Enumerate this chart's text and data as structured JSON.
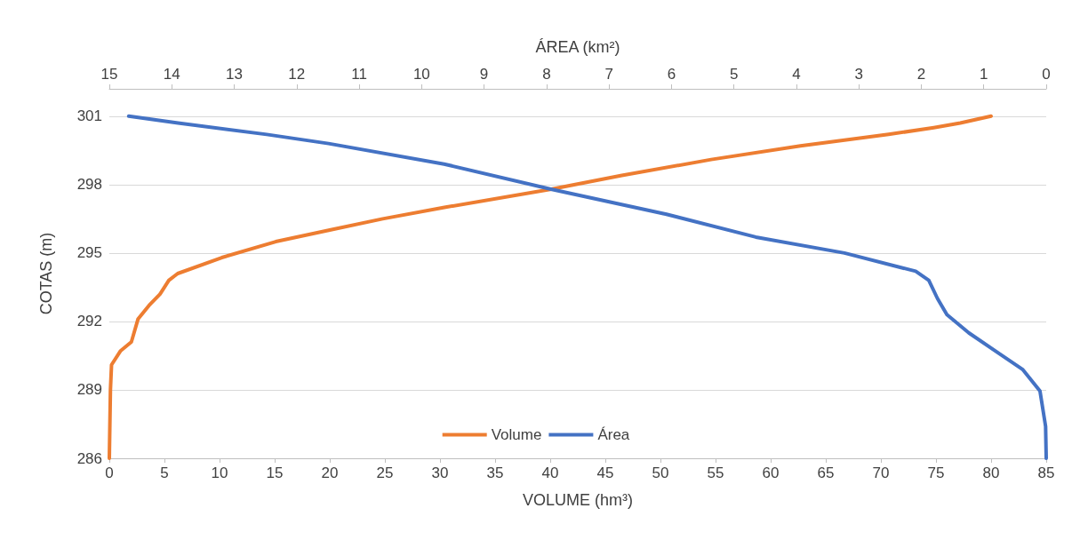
{
  "chart_data": {
    "type": "line",
    "xlabel": "VOLUME (hm³)",
    "x2label": "ÁREA (km²)",
    "ylabel": "COTAS (m)",
    "xlim": [
      0,
      85
    ],
    "xticks": [
      0,
      5,
      10,
      15,
      20,
      25,
      30,
      35,
      40,
      45,
      50,
      55,
      60,
      65,
      70,
      75,
      80,
      85
    ],
    "x2lim": [
      15,
      0
    ],
    "x2ticks": [
      15,
      14,
      13,
      12,
      11,
      10,
      9,
      8,
      7,
      6,
      5,
      4,
      3,
      2,
      1,
      0
    ],
    "ylim": [
      286,
      302.2
    ],
    "yticks": [
      286,
      289,
      292,
      295,
      298,
      301
    ],
    "grid": "y",
    "legend": "bottom",
    "marker": "none",
    "line_style": "solid",
    "series": [
      {
        "name": "Volume",
        "color": "#ed7d31",
        "x": [
          0,
          0.1,
          0.2,
          1,
          2,
          2.6,
          3.6,
          4.6,
          5.4,
          6.2,
          10.2,
          15.1,
          19.9,
          24.8,
          30.4,
          40.1,
          46.5,
          54.6,
          62.7,
          70.7,
          74.8,
          77.2,
          80
        ],
        "values": [
          286,
          289,
          290.1,
          290.7,
          291.1,
          292.1,
          292.7,
          293.2,
          293.8,
          294.1,
          294.8,
          295.5,
          296,
          296.5,
          297,
          297.8,
          298.4,
          299.1,
          299.7,
          300.2,
          300.5,
          300.7,
          301
        ]
      },
      {
        "name": "Área",
        "color": "#4472c4",
        "axis": "x2",
        "x": [
          0,
          0.01,
          0.1,
          0.38,
          0.81,
          1.24,
          1.59,
          1.74,
          1.88,
          2.09,
          3.23,
          4.65,
          6.08,
          7.93,
          9.64,
          11.49,
          12.48,
          13.9,
          14.69
        ],
        "values": [
          286,
          287.4,
          288.95,
          289.9,
          290.7,
          291.5,
          292.3,
          293,
          293.8,
          294.2,
          295,
          295.7,
          296.7,
          297.8,
          298.9,
          299.8,
          300.2,
          300.7,
          301
        ]
      }
    ]
  }
}
